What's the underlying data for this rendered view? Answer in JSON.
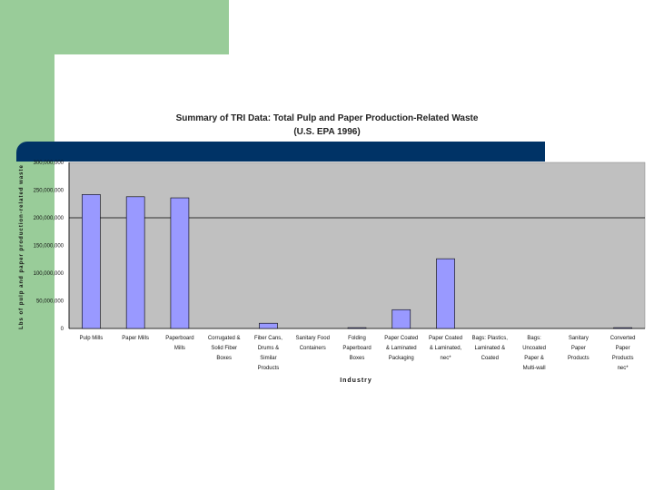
{
  "chart_data": {
    "type": "bar",
    "title_lines": [
      "Summary of TRI Data: Total Pulp and Paper Production-Related Waste",
      "(U.S. EPA 1996)"
    ],
    "xlabel": "Industry",
    "ylabel": "Lbs of pulp and paper production-related waste",
    "ylim": [
      0,
      300000000
    ],
    "ytick_labels": [
      "0",
      "50,000,000",
      "100,000,000",
      "150,000,000",
      "200,000,000",
      "250,000,000",
      "300,000,000"
    ],
    "ytick_values": [
      0,
      50000000,
      100000000,
      150000000,
      200000000,
      250000000,
      300000000
    ],
    "categories": [
      [
        "Pulp Mills"
      ],
      [
        "Paper Mills"
      ],
      [
        "Paperboard",
        "Mills"
      ],
      [
        "Corrugated &",
        "Solid Fiber",
        "Boxes"
      ],
      [
        "Fiber Cans,",
        "Drums &",
        "Similar",
        "Products"
      ],
      [
        "Sanitary Food",
        "Containers"
      ],
      [
        "Folding",
        "Paperboard",
        "Boxes"
      ],
      [
        "Paper Coated",
        "& Laminated",
        "Packaging"
      ],
      [
        "Paper Coated",
        "& Laminated,",
        "nec*"
      ],
      [
        "Bags: Plastics,",
        "Laminated &",
        "Coated"
      ],
      [
        "Bags:",
        "Uncoated",
        "Paper &",
        "Multi-wall"
      ],
      [
        "Sanitary",
        "Paper",
        "Products"
      ],
      [
        "Converted",
        "Paper",
        "Products",
        "nec*"
      ]
    ],
    "values": [
      242000000,
      238000000,
      236000000,
      0,
      9500000,
      0,
      1500000,
      34000000,
      126000000,
      0,
      0,
      0,
      1500000
    ],
    "grid_lines": [
      200000000
    ],
    "colors": {
      "bar": "#9999ff",
      "bar_edge": "#000000",
      "plot_bg": "#c0c0c0",
      "band": "#003366",
      "accent_green": "#99cc99"
    }
  }
}
